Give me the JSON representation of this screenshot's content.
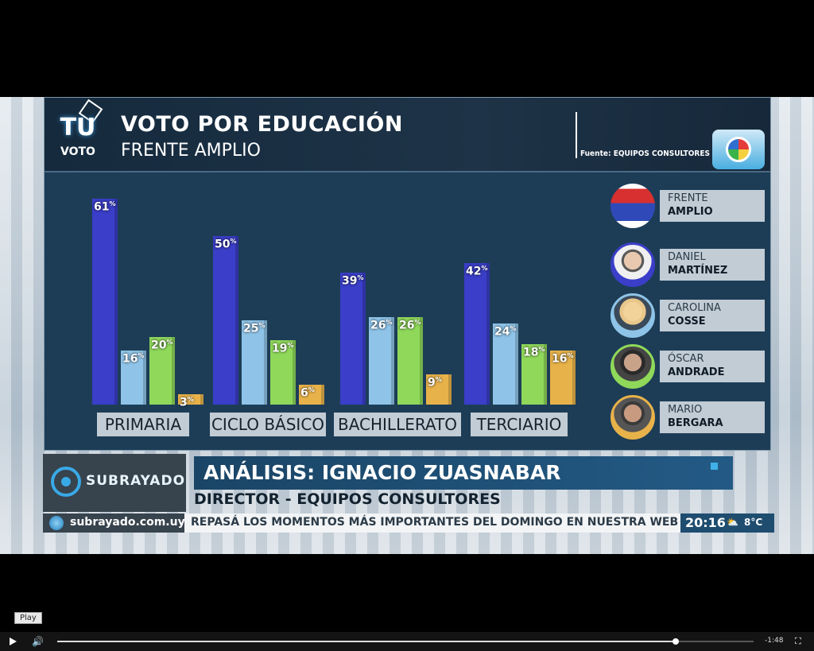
{
  "header": {
    "title": "VOTO  POR EDUCACIÓN",
    "subtitle": "FRENTE AMPLIO",
    "source": "Fuente: EQUIPOS CONSULTORES",
    "logo_tu": "TU",
    "logo_voto": "VOTO"
  },
  "colors": {
    "martinez": "#3a3ec8",
    "cosse": "#8fc4e8",
    "andrade": "#8fd85a",
    "bergara": "#e8b24a"
  },
  "chart_data": {
    "type": "bar",
    "title": "VOTO  POR EDUCACIÓN",
    "subtitle": "FRENTE AMPLIO",
    "categories": [
      "PRIMARIA",
      "CICLO BÁSICO",
      "BACHILLERATO",
      "TERCIARIO"
    ],
    "series": [
      {
        "name": "DANIEL MARTÍNEZ",
        "values": [
          61,
          50,
          39,
          42
        ]
      },
      {
        "name": "CAROLINA COSSE",
        "values": [
          16,
          25,
          26,
          24
        ]
      },
      {
        "name": "ÓSCAR ANDRADE",
        "values": [
          20,
          19,
          26,
          18
        ]
      },
      {
        "name": "MARIO BERGARA",
        "values": [
          3,
          6,
          9,
          16
        ]
      }
    ],
    "value_suffix": "%",
    "legend_placement": "right"
  },
  "legend": [
    {
      "l1": "FRENTE",
      "l2": "AMPLIO"
    },
    {
      "l1": "DANIEL",
      "l2": "MARTÍNEZ"
    },
    {
      "l1": "CAROLINA",
      "l2": "COSSE"
    },
    {
      "l1": "ÓSCAR",
      "l2": "ANDRADE"
    },
    {
      "l1": "MARIO",
      "l2": "BERGARA"
    }
  ],
  "lower_third": {
    "channel": "SUBRAYADO",
    "name": "ANÁLISIS: IGNACIO ZUASNABAR",
    "role": "DIRECTOR - EQUIPOS CONSULTORES",
    "website": "subrayado.com.uy",
    "ticker": "REPASÁ LOS MOMENTOS MÁS IMPORTANTES DEL DOMINGO EN NUESTRA WEB",
    "time": "20:16",
    "weather_icon": "partly-cloudy-icon",
    "weather_glyph": "⛅",
    "temperature": "8°C"
  },
  "player": {
    "tooltip": "Play",
    "remaining": "-1:48",
    "progress": 0.888
  }
}
